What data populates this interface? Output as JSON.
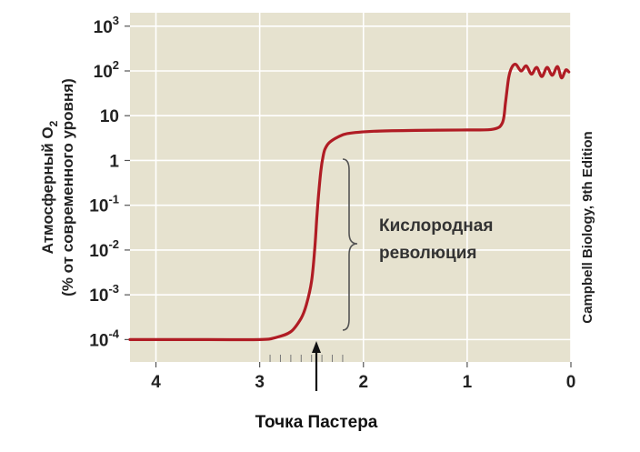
{
  "chart_data": {
    "type": "line",
    "ylabel_line1_prefix": "Атмосферный O",
    "ylabel_line1_sub": "2",
    "ylabel_line2": "(% от современного уровня)",
    "x_ticks": [
      "4",
      "3",
      "2",
      "1",
      "0"
    ],
    "y_ticks": [
      {
        "base": "10",
        "exp": "-4"
      },
      {
        "base": "10",
        "exp": "-3"
      },
      {
        "base": "10",
        "exp": "-2"
      },
      {
        "base": "10",
        "exp": "-1"
      },
      {
        "base": "1",
        "exp": ""
      },
      {
        "base": "10",
        "exp": ""
      },
      {
        "base": "10",
        "exp": "2"
      },
      {
        "base": "10",
        "exp": "3"
      }
    ],
    "xlim": [
      4.25,
      0
    ],
    "ylim_log10": [
      -4.5,
      3.3
    ],
    "series": [
      {
        "color": "#b01c24",
        "x": [
          4.25,
          3.5,
          3.0,
          2.85,
          2.7,
          2.6,
          2.55,
          2.5,
          2.47,
          2.45,
          2.43,
          2.41,
          2.39,
          2.37,
          2.33,
          2.25,
          2.15,
          1.9,
          1.5,
          1.0,
          0.75,
          0.66,
          0.63,
          0.6,
          0.57,
          0.53,
          0.48,
          0.43,
          0.38,
          0.33,
          0.28,
          0.23,
          0.18,
          0.13,
          0.09,
          0.05,
          0.02
        ],
        "y": [
          0.0001,
          0.0001,
          0.0001,
          0.00011,
          0.00015,
          0.0003,
          0.0006,
          0.002,
          0.01,
          0.05,
          0.2,
          0.6,
          1.2,
          1.8,
          2.5,
          3.3,
          4.0,
          4.5,
          4.7,
          4.8,
          5.0,
          7.0,
          20,
          70,
          120,
          140,
          100,
          130,
          85,
          120,
          75,
          120,
          80,
          125,
          70,
          105,
          95
        ]
      }
    ],
    "annotations": [
      {
        "text_line1": "Кислородная",
        "text_line2": "революция",
        "x_from": 2.47,
        "x_to": 2.1
      },
      {
        "text": "Точка Пастера",
        "arrow_x": 2.45
      }
    ]
  },
  "credit": "Campbell Biology, 9th Edition",
  "colors": {
    "plot_bg": "#e6e2cf",
    "grid": "#ffffff",
    "line": "#b01c24"
  }
}
